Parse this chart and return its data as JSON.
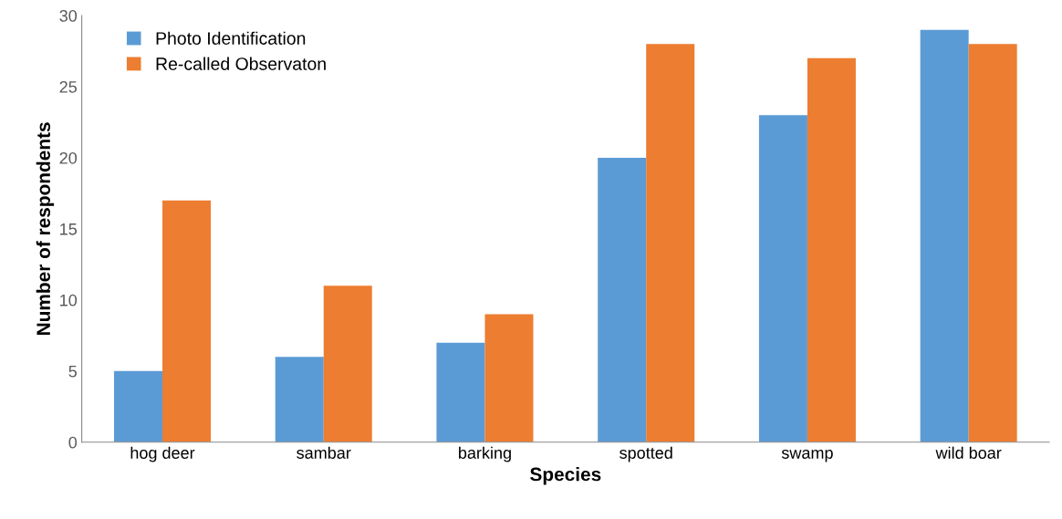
{
  "chart_data": {
    "type": "bar",
    "xlabel": "Species",
    "ylabel": "Number of respondents",
    "categories": [
      "hog deer",
      "sambar",
      "barking",
      "spotted",
      "swamp",
      "wild boar"
    ],
    "series": [
      {
        "name": "Photo Identification",
        "color": "#5b9bd5",
        "values": [
          5,
          6,
          7,
          20,
          23,
          29
        ]
      },
      {
        "name": "Re-called Observaton",
        "color": "#ed7d31",
        "values": [
          17,
          11,
          9,
          28,
          27,
          28
        ]
      }
    ],
    "ylim": [
      0,
      30
    ],
    "yticks": [
      0,
      5,
      10,
      15,
      20,
      25,
      30
    ],
    "grid": false,
    "legend": "top left"
  }
}
